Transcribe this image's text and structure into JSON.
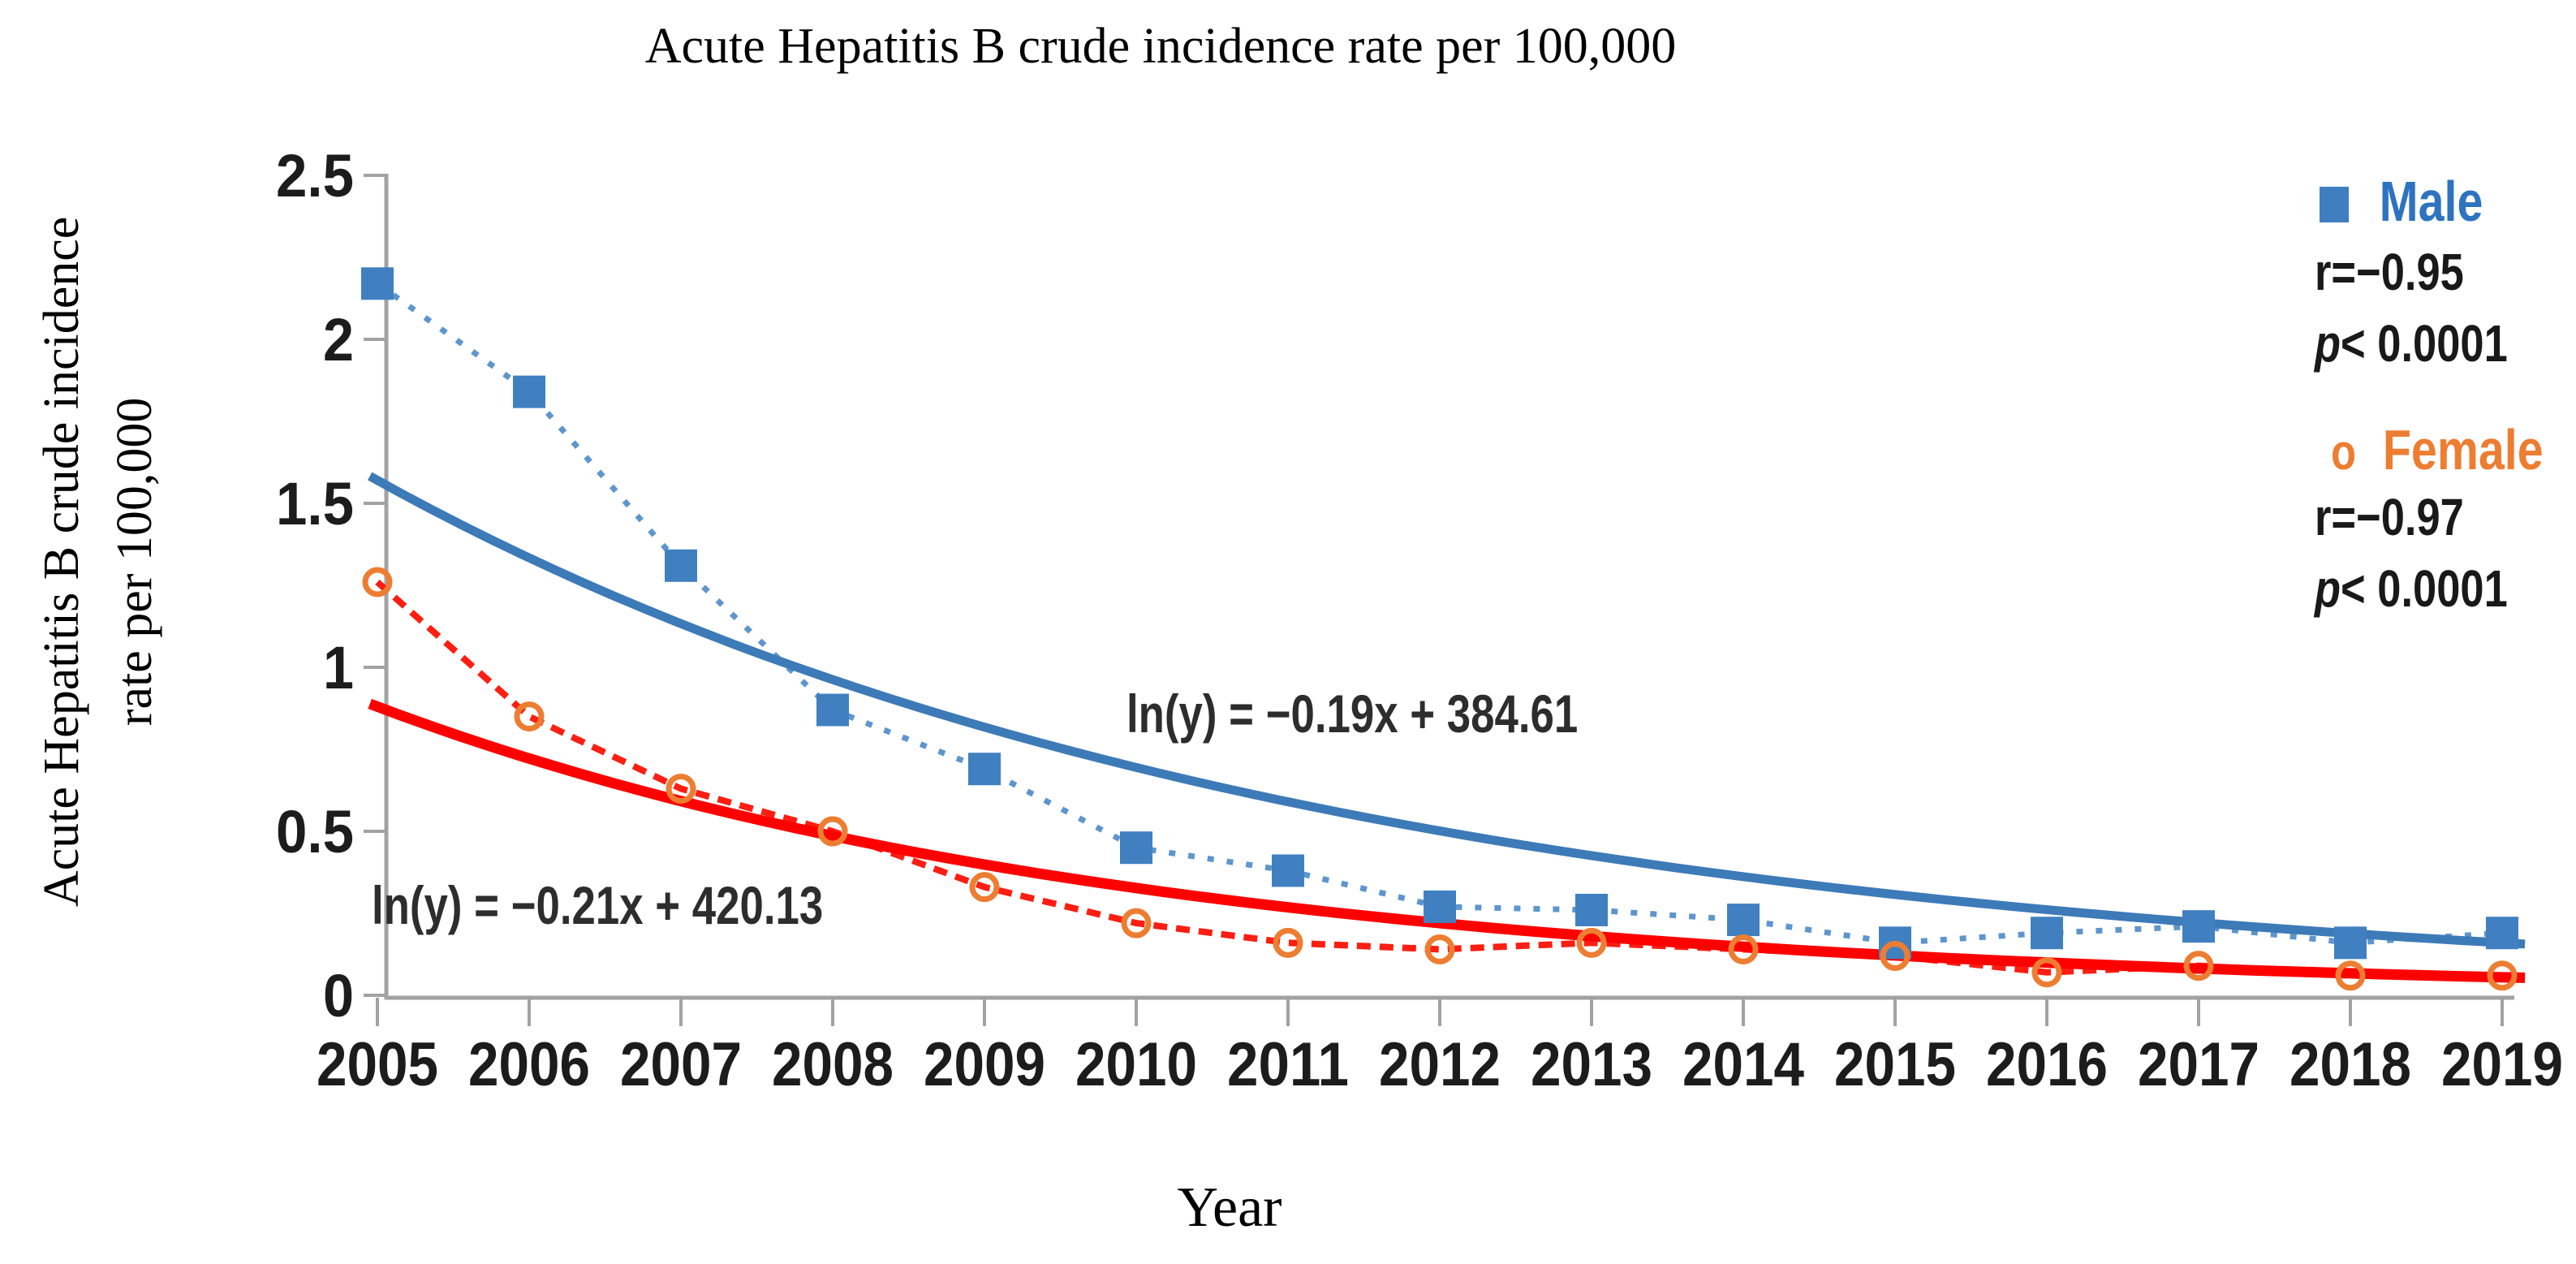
{
  "title": "Acute Hepatitis B crude incidence rate per 100,000",
  "axes": {
    "x_label": "Year",
    "y_label_line1": "Acute Hepatitis B crude incidence",
    "y_label_line2": "rate per 100,000"
  },
  "annotations": {
    "male_equation": "ln(y) = −0.19x + 384.61",
    "female_equation": "ln(y) = −0.21x + 420.13"
  },
  "legend": {
    "male": {
      "label": "Male",
      "r": "r=−0.95",
      "p_italic": "p",
      "p_rest": "< 0.0001"
    },
    "female": {
      "label": "Female",
      "marker": "o",
      "r": "r=−0.97",
      "p_italic": "p",
      "p_rest": "< 0.0001"
    }
  },
  "colors": {
    "male_marker": "#4080c0",
    "male_dashed_line": "#5e95cd",
    "male_trend": "#3d7ab8",
    "male_legend_text": "#2e73c0",
    "female_marker": "#ed7d31",
    "female_dashed_line": "#fc1e12",
    "female_trend": "#fd0000",
    "axis": "#a2a2a2",
    "tick_text": "#1c1c1c"
  },
  "chart_data": {
    "type": "line",
    "title": "Acute Hepatitis B crude incidence rate per 100,000",
    "xlabel": "Year",
    "ylabel": "Acute Hepatitis B crude incidence rate per 100,000",
    "x": [
      2005,
      2006,
      2007,
      2008,
      2009,
      2010,
      2011,
      2012,
      2013,
      2014,
      2015,
      2016,
      2017,
      2018,
      2019
    ],
    "x_tick_labels": [
      "2005",
      "2006",
      "2007",
      "2008",
      "2009",
      "2010",
      "2011",
      "2012",
      "2013",
      "2014",
      "2015",
      "2016",
      "2017",
      "2018",
      "2019"
    ],
    "ylim": [
      0,
      2.5
    ],
    "y_ticks": [
      2.5,
      2,
      1.5,
      1,
      0.5,
      0
    ],
    "y_tick_labels": [
      "2.5",
      "2",
      "1.5",
      "1",
      "0.5",
      "0"
    ],
    "grid": false,
    "legend_position": "top-right",
    "series": [
      {
        "name": "Male",
        "marker": "square",
        "line_style": "dashed",
        "values": [
          2.17,
          1.84,
          1.31,
          0.87,
          0.69,
          0.45,
          0.38,
          0.27,
          0.26,
          0.23,
          0.16,
          0.19,
          0.21,
          0.16,
          0.19
        ],
        "r": "-0.95",
        "p": "< 0.0001"
      },
      {
        "name": "Female",
        "marker": "open-circle",
        "line_style": "dashed",
        "values": [
          1.26,
          0.85,
          0.63,
          0.5,
          0.33,
          0.22,
          0.16,
          0.14,
          0.16,
          0.14,
          0.12,
          0.07,
          0.09,
          0.06,
          0.06
        ],
        "r": "-0.97",
        "p": "< 0.0001"
      }
    ],
    "trendlines": [
      {
        "name": "Male trend",
        "model": "exponential",
        "start_value": 1.57,
        "end_value": 0.16,
        "equation": "ln(y) = −0.19x + 384.61"
      },
      {
        "name": "Female trend",
        "model": "exponential",
        "start_value": 0.88,
        "end_value": 0.055,
        "equation": "ln(y) = −0.21x + 420.13"
      }
    ]
  }
}
